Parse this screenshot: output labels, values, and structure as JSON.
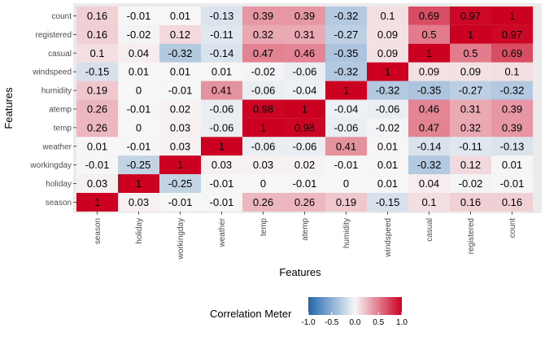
{
  "chart_data": {
    "type": "heatmap",
    "title": "",
    "xlabel": "Features",
    "ylabel": "Features",
    "x_categories": [
      "season",
      "holiday",
      "workingday",
      "weather",
      "temp",
      "atemp",
      "humidity",
      "windspeed",
      "casual",
      "registered",
      "count"
    ],
    "y_categories": [
      "count",
      "registered",
      "casual",
      "windspeed",
      "humidity",
      "atemp",
      "temp",
      "weather",
      "workingday",
      "holiday",
      "season"
    ],
    "values": [
      [
        0.16,
        -0.01,
        0.01,
        -0.13,
        0.39,
        0.39,
        -0.32,
        0.1,
        0.69,
        0.97,
        1
      ],
      [
        0.16,
        -0.02,
        0.12,
        -0.11,
        0.32,
        0.31,
        -0.27,
        0.09,
        0.5,
        1,
        0.97
      ],
      [
        0.1,
        0.04,
        -0.32,
        -0.14,
        0.47,
        0.46,
        -0.35,
        0.09,
        1,
        0.5,
        0.69
      ],
      [
        -0.15,
        0.01,
        0.01,
        0.01,
        -0.02,
        -0.06,
        -0.32,
        1,
        0.09,
        0.09,
        0.1
      ],
      [
        0.19,
        0,
        -0.01,
        0.41,
        -0.06,
        -0.04,
        1,
        -0.32,
        -0.35,
        -0.27,
        -0.32
      ],
      [
        0.26,
        -0.01,
        0.02,
        -0.06,
        0.98,
        1,
        -0.04,
        -0.06,
        0.46,
        0.31,
        0.39
      ],
      [
        0.26,
        0,
        0.03,
        -0.06,
        1,
        0.98,
        -0.06,
        -0.02,
        0.47,
        0.32,
        0.39
      ],
      [
        0.01,
        -0.01,
        0.03,
        1,
        -0.06,
        -0.06,
        0.41,
        0.01,
        -0.14,
        -0.11,
        -0.13
      ],
      [
        -0.01,
        -0.25,
        1,
        0.03,
        0.03,
        0.02,
        -0.01,
        0.01,
        -0.32,
        0.12,
        0.01
      ],
      [
        0.03,
        1,
        -0.25,
        -0.01,
        0,
        -0.01,
        0,
        0.01,
        0.04,
        -0.02,
        -0.01
      ],
      [
        1,
        0.03,
        -0.01,
        -0.01,
        0.26,
        0.26,
        0.19,
        -0.15,
        0.1,
        0.16,
        0.16
      ]
    ],
    "legend": {
      "title": "Correlation Meter",
      "position": "bottom",
      "range": [
        -1,
        1
      ],
      "ticks": [
        "-1.0",
        "-0.5",
        "0.0",
        "0.5",
        "1.0"
      ],
      "tick_values": [
        -1,
        -0.5,
        0,
        0.5,
        1
      ]
    },
    "colors": {
      "low": "#2166ac",
      "mid": "#f7f7f7",
      "high": "#cc0020",
      "panel_background": "#ebebeb"
    }
  }
}
